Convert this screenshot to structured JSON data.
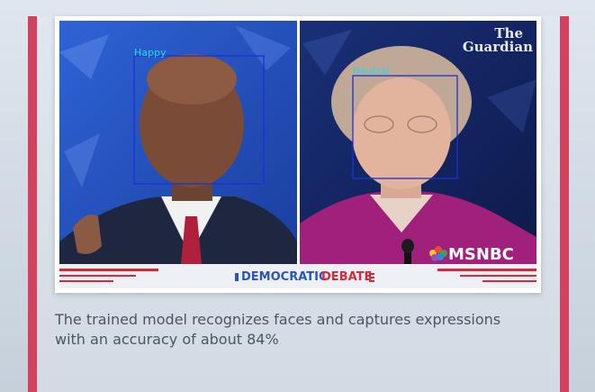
{
  "figure": {
    "left_face_label": "Happy",
    "right_face_label": "Neutral",
    "watermark_line1": "The",
    "watermark_line2": "Guardian",
    "network_logo_text": "MSNBC",
    "banner_word1": "DEMOCRATIC",
    "banner_word2": "DEBATE",
    "detection_box_color": "#1f2fd6",
    "label_color": "#2ad7e8"
  },
  "caption": {
    "line1": "The trained model recognizes faces and captures expressions",
    "line2": "with an accuracy of about 84%"
  },
  "colors": {
    "accent_bar": "#d4415e",
    "banner_red": "#d42a3a",
    "banner_blue": "#2a54c8"
  }
}
